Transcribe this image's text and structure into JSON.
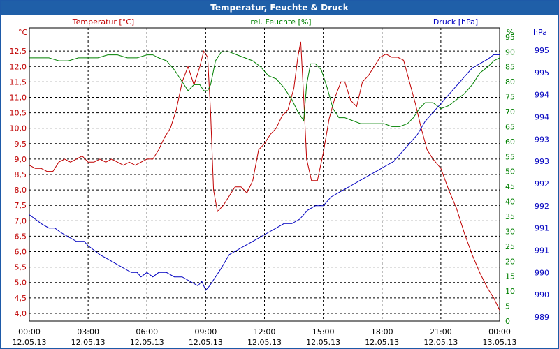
{
  "window_title": "Temperatur, Feuchte & Druck",
  "colors": {
    "temperature": "#c00000",
    "humidity": "#008000",
    "pressure": "#0000c0",
    "titlebar": "#1f5fa8"
  },
  "chart_data": {
    "type": "line",
    "title": "Temperatur, Feuchte & Druck",
    "x_hours_range": [
      0,
      24
    ],
    "grid": true,
    "x_ticks": [
      {
        "h": 0,
        "time": "00:00",
        "date": "12.05.13"
      },
      {
        "h": 3,
        "time": "03:00",
        "date": "12.05.13"
      },
      {
        "h": 6,
        "time": "06:00",
        "date": "12.05.13"
      },
      {
        "h": 9,
        "time": "09:00",
        "date": "12.05.13"
      },
      {
        "h": 12,
        "time": "12:00",
        "date": "12.05.13"
      },
      {
        "h": 15,
        "time": "15:00",
        "date": "12.05.13"
      },
      {
        "h": 18,
        "time": "18:00",
        "date": "12.05.13"
      },
      {
        "h": 21,
        "time": "21:00",
        "date": "12.05.13"
      },
      {
        "h": 24,
        "time": "00:00",
        "date": "13.05.13"
      }
    ],
    "axes": {
      "temperature": {
        "unit": "°C",
        "label": "Temperatur [°C]",
        "range": [
          3.75,
          13.25
        ],
        "ticks": [
          "4,0",
          "4,5",
          "5,0",
          "5,5",
          "6,0",
          "6,5",
          "7,0",
          "7,5",
          "8,0",
          "8,5",
          "9,0",
          "9,5",
          "10,0",
          "10,5",
          "11,0",
          "11,5",
          "12,0",
          "12,5"
        ]
      },
      "humidity": {
        "unit": "%",
        "label": "rel. Feuchte [%]",
        "range": [
          0,
          98
        ],
        "ticks": [
          "0",
          "5",
          "10",
          "15",
          "20",
          "25",
          "30",
          "35",
          "40",
          "45",
          "50",
          "55",
          "60",
          "65",
          "70",
          "75",
          "80",
          "85",
          "90",
          "95"
        ]
      },
      "pressure": {
        "unit": "hPa",
        "label": "Druck [hPa]",
        "ticks": [
          "989",
          "990",
          "990",
          "991",
          "991",
          "992",
          "992",
          "993",
          "993",
          "994",
          "994",
          "995",
          "995"
        ]
      }
    },
    "series": [
      {
        "name": "Temperatur",
        "axis": "temperature",
        "color": "#c00000",
        "points": [
          [
            0,
            8.8
          ],
          [
            0.3,
            8.7
          ],
          [
            0.6,
            8.7
          ],
          [
            0.9,
            8.6
          ],
          [
            1.2,
            8.6
          ],
          [
            1.5,
            8.9
          ],
          [
            1.8,
            9.0
          ],
          [
            2.1,
            8.9
          ],
          [
            2.4,
            9.0
          ],
          [
            2.7,
            9.1
          ],
          [
            3.0,
            8.9
          ],
          [
            3.3,
            8.9
          ],
          [
            3.6,
            9.0
          ],
          [
            3.9,
            8.9
          ],
          [
            4.2,
            9.0
          ],
          [
            4.5,
            8.9
          ],
          [
            4.8,
            8.8
          ],
          [
            5.1,
            8.9
          ],
          [
            5.4,
            8.8
          ],
          [
            5.7,
            8.9
          ],
          [
            6.0,
            9.0
          ],
          [
            6.3,
            9.0
          ],
          [
            6.6,
            9.3
          ],
          [
            6.9,
            9.7
          ],
          [
            7.2,
            10.0
          ],
          [
            7.5,
            10.6
          ],
          [
            7.8,
            11.5
          ],
          [
            8.1,
            12.0
          ],
          [
            8.4,
            11.4
          ],
          [
            8.7,
            12.0
          ],
          [
            8.9,
            12.5
          ],
          [
            9.1,
            12.3
          ],
          [
            9.25,
            10.5
          ],
          [
            9.4,
            8.0
          ],
          [
            9.6,
            7.3
          ],
          [
            9.9,
            7.5
          ],
          [
            10.2,
            7.8
          ],
          [
            10.5,
            8.1
          ],
          [
            10.8,
            8.1
          ],
          [
            11.1,
            7.9
          ],
          [
            11.4,
            8.3
          ],
          [
            11.7,
            9.3
          ],
          [
            12.0,
            9.5
          ],
          [
            12.3,
            9.8
          ],
          [
            12.6,
            10.0
          ],
          [
            12.9,
            10.4
          ],
          [
            13.2,
            10.6
          ],
          [
            13.5,
            11.3
          ],
          [
            13.7,
            12.3
          ],
          [
            13.85,
            12.8
          ],
          [
            14.0,
            11.0
          ],
          [
            14.15,
            9.0
          ],
          [
            14.4,
            8.3
          ],
          [
            14.7,
            8.3
          ],
          [
            15.0,
            9.2
          ],
          [
            15.3,
            10.3
          ],
          [
            15.6,
            11.0
          ],
          [
            15.9,
            11.5
          ],
          [
            16.1,
            11.5
          ],
          [
            16.4,
            10.9
          ],
          [
            16.7,
            10.7
          ],
          [
            17.0,
            11.5
          ],
          [
            17.3,
            11.7
          ],
          [
            17.6,
            12.0
          ],
          [
            17.9,
            12.3
          ],
          [
            18.2,
            12.4
          ],
          [
            18.5,
            12.3
          ],
          [
            18.8,
            12.3
          ],
          [
            19.1,
            12.2
          ],
          [
            19.4,
            11.5
          ],
          [
            19.7,
            10.8
          ],
          [
            20.0,
            10.0
          ],
          [
            20.3,
            9.3
          ],
          [
            20.6,
            9.0
          ],
          [
            21.0,
            8.7
          ],
          [
            21.4,
            8.0
          ],
          [
            21.8,
            7.4
          ],
          [
            22.2,
            6.6
          ],
          [
            22.6,
            5.9
          ],
          [
            23.0,
            5.3
          ],
          [
            23.4,
            4.8
          ],
          [
            23.7,
            4.5
          ],
          [
            24.0,
            4.1
          ]
        ]
      },
      {
        "name": "rel. Feuchte",
        "axis": "humidity",
        "color": "#008000",
        "points": [
          [
            0,
            88
          ],
          [
            0.5,
            88
          ],
          [
            1.0,
            88
          ],
          [
            1.5,
            87
          ],
          [
            2.0,
            87
          ],
          [
            2.5,
            88
          ],
          [
            3.0,
            88
          ],
          [
            3.5,
            88
          ],
          [
            4.0,
            89
          ],
          [
            4.5,
            89
          ],
          [
            5.0,
            88
          ],
          [
            5.5,
            88
          ],
          [
            6.0,
            89
          ],
          [
            6.3,
            89
          ],
          [
            6.6,
            88
          ],
          [
            7.0,
            87
          ],
          [
            7.4,
            84
          ],
          [
            7.8,
            80
          ],
          [
            8.1,
            77
          ],
          [
            8.4,
            79
          ],
          [
            8.7,
            79
          ],
          [
            8.9,
            77
          ],
          [
            9.1,
            77
          ],
          [
            9.25,
            79
          ],
          [
            9.5,
            87
          ],
          [
            9.8,
            90
          ],
          [
            10.2,
            90
          ],
          [
            10.6,
            89
          ],
          [
            11.0,
            88
          ],
          [
            11.4,
            87
          ],
          [
            11.8,
            85
          ],
          [
            12.2,
            82
          ],
          [
            12.6,
            81
          ],
          [
            13.0,
            78
          ],
          [
            13.4,
            74
          ],
          [
            13.7,
            70
          ],
          [
            14.0,
            67
          ],
          [
            14.15,
            79
          ],
          [
            14.35,
            86
          ],
          [
            14.6,
            86
          ],
          [
            14.9,
            84
          ],
          [
            15.2,
            78
          ],
          [
            15.5,
            71
          ],
          [
            15.8,
            68
          ],
          [
            16.1,
            68
          ],
          [
            16.5,
            67
          ],
          [
            16.9,
            66
          ],
          [
            17.3,
            66
          ],
          [
            17.7,
            66
          ],
          [
            18.1,
            66
          ],
          [
            18.5,
            65
          ],
          [
            18.9,
            65
          ],
          [
            19.3,
            66
          ],
          [
            19.6,
            68
          ],
          [
            19.9,
            71
          ],
          [
            20.2,
            73
          ],
          [
            20.6,
            73
          ],
          [
            21.0,
            71
          ],
          [
            21.4,
            72
          ],
          [
            21.8,
            74
          ],
          [
            22.2,
            76
          ],
          [
            22.6,
            79
          ],
          [
            23.0,
            83
          ],
          [
            23.4,
            85
          ],
          [
            23.7,
            87
          ],
          [
            24.0,
            88
          ]
        ]
      },
      {
        "name": "Druck",
        "axis": "pressure",
        "color": "#0000c0",
        "unit_note": "values mapped on the hPa scale (label values rounded)",
        "points": [
          [
            0,
            991.3
          ],
          [
            0.3,
            991.2
          ],
          [
            0.6,
            991.1
          ],
          [
            1.0,
            991.0
          ],
          [
            1.3,
            991.0
          ],
          [
            1.6,
            990.9
          ],
          [
            2.0,
            990.8
          ],
          [
            2.4,
            990.7
          ],
          [
            2.8,
            990.7
          ],
          [
            3.0,
            990.6
          ],
          [
            3.3,
            990.5
          ],
          [
            3.6,
            990.4
          ],
          [
            4.0,
            990.3
          ],
          [
            4.4,
            990.2
          ],
          [
            4.8,
            990.1
          ],
          [
            5.2,
            990.0
          ],
          [
            5.5,
            990.0
          ],
          [
            5.7,
            989.9
          ],
          [
            6.0,
            990.0
          ],
          [
            6.3,
            989.9
          ],
          [
            6.6,
            990.0
          ],
          [
            7.0,
            990.0
          ],
          [
            7.4,
            989.9
          ],
          [
            7.8,
            989.9
          ],
          [
            8.2,
            989.8
          ],
          [
            8.6,
            989.7
          ],
          [
            8.8,
            989.8
          ],
          [
            9.0,
            989.6
          ],
          [
            9.2,
            989.7
          ],
          [
            9.5,
            989.9
          ],
          [
            9.8,
            990.1
          ],
          [
            10.2,
            990.4
          ],
          [
            10.6,
            990.5
          ],
          [
            11.0,
            990.6
          ],
          [
            11.4,
            990.7
          ],
          [
            11.8,
            990.8
          ],
          [
            12.2,
            990.9
          ],
          [
            12.6,
            991.0
          ],
          [
            13.0,
            991.1
          ],
          [
            13.4,
            991.1
          ],
          [
            13.8,
            991.2
          ],
          [
            14.2,
            991.4
          ],
          [
            14.6,
            991.5
          ],
          [
            15.0,
            991.5
          ],
          [
            15.4,
            991.7
          ],
          [
            15.8,
            991.8
          ],
          [
            16.2,
            991.9
          ],
          [
            16.6,
            992.0
          ],
          [
            17.0,
            992.1
          ],
          [
            17.4,
            992.2
          ],
          [
            17.8,
            992.3
          ],
          [
            18.2,
            992.4
          ],
          [
            18.6,
            992.5
          ],
          [
            19.0,
            992.7
          ],
          [
            19.4,
            992.9
          ],
          [
            19.8,
            993.1
          ],
          [
            20.2,
            993.4
          ],
          [
            20.6,
            993.6
          ],
          [
            21.0,
            993.8
          ],
          [
            21.4,
            994.0
          ],
          [
            21.8,
            994.2
          ],
          [
            22.2,
            994.4
          ],
          [
            22.6,
            994.6
          ],
          [
            23.0,
            994.7
          ],
          [
            23.4,
            994.8
          ],
          [
            23.7,
            994.9
          ],
          [
            24.0,
            994.9
          ]
        ]
      }
    ]
  }
}
